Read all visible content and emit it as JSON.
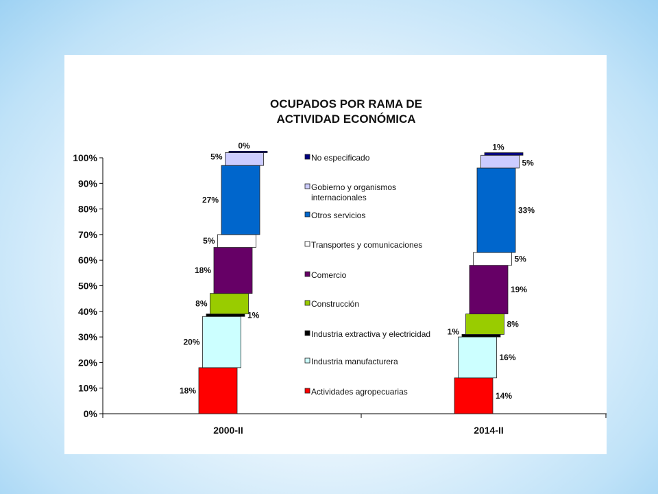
{
  "chart_data": {
    "type": "bar",
    "title": [
      "OCUPADOS POR RAMA DE",
      "ACTIVIDAD ECONÓMICA"
    ],
    "categories": [
      "2000-II",
      "2014-II"
    ],
    "y_ticks": [
      "0%",
      "10%",
      "20%",
      "30%",
      "40%",
      "50%",
      "60%",
      "70%",
      "80%",
      "90%",
      "100%"
    ],
    "ylim": [
      0,
      100
    ],
    "legend_placement": "center",
    "series": [
      {
        "name": "Actividades agropecuarias",
        "color": "#ff0000",
        "values": [
          18,
          14
        ],
        "labels": [
          "18%",
          "14%"
        ]
      },
      {
        "name": "Industria manufacturera",
        "color": "#ccffff",
        "values": [
          20,
          16
        ],
        "labels": [
          "20%",
          "16%"
        ]
      },
      {
        "name": "Industria extractiva y electricidad",
        "color": "#000000",
        "values": [
          1,
          1
        ],
        "labels": [
          "1%",
          "1%"
        ]
      },
      {
        "name": "Construcción",
        "color": "#99cc00",
        "values": [
          8,
          8
        ],
        "labels": [
          "8%",
          "8%"
        ]
      },
      {
        "name": "Comercio",
        "color": "#660066",
        "values": [
          18,
          19
        ],
        "labels": [
          "18%",
          "19%"
        ]
      },
      {
        "name": "Transportes y comunicaciones",
        "color": "#ffffff",
        "values": [
          5,
          5
        ],
        "labels": [
          "5%",
          "5%"
        ]
      },
      {
        "name": "Otros servicios",
        "color": "#0066cc",
        "values": [
          27,
          33
        ],
        "labels": [
          "27%",
          "33%"
        ]
      },
      {
        "name": "Gobierno y organismos internacionales",
        "legend_lines": [
          "Gobierno y organismos",
          "internacionales"
        ],
        "color": "#ccccff",
        "values": [
          5,
          5
        ],
        "labels": [
          "5%",
          "5%"
        ]
      },
      {
        "name": "No especificado",
        "color": "#000080",
        "values": [
          0,
          1
        ],
        "labels": [
          "0%",
          "1%"
        ]
      }
    ]
  }
}
